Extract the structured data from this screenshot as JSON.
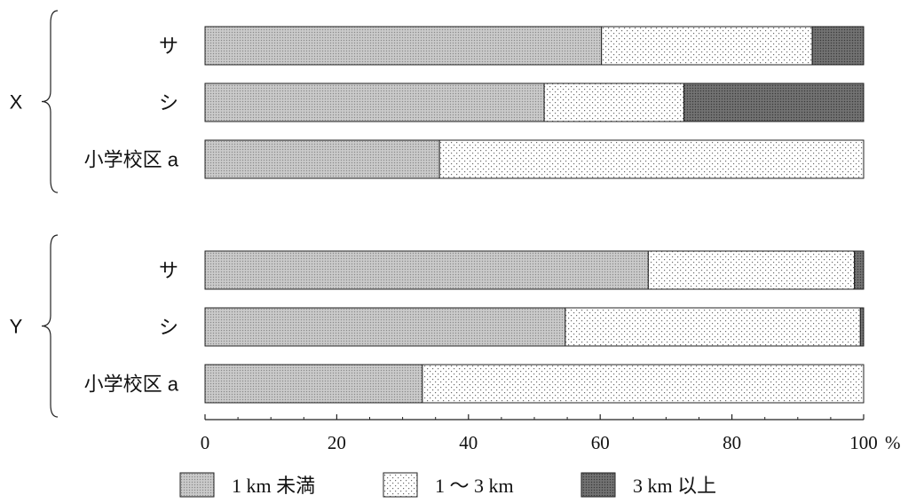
{
  "chart_data": {
    "type": "bar",
    "orientation": "horizontal",
    "stacked": true,
    "percent": true,
    "groups": [
      {
        "name": "X",
        "rows": [
          {
            "label": "サ",
            "values": [
              60.2,
              32.0,
              7.8
            ]
          },
          {
            "label": "シ",
            "values": [
              51.5,
              21.2,
              27.3
            ]
          },
          {
            "label": "小学校区 a",
            "values": [
              35.6,
              64.4,
              0
            ]
          }
        ]
      },
      {
        "name": "Y",
        "rows": [
          {
            "label": "サ",
            "values": [
              67.3,
              31.3,
              1.4
            ]
          },
          {
            "label": "シ",
            "values": [
              54.7,
              44.8,
              0.5
            ]
          },
          {
            "label": "小学校区 a",
            "values": [
              33.0,
              67.0,
              0
            ]
          }
        ]
      }
    ],
    "series": [
      {
        "name": "1 km 未満",
        "pattern": "light-gray"
      },
      {
        "name": "1 〜 3 km",
        "pattern": "dotted"
      },
      {
        "name": "3 km 以上",
        "pattern": "dark-gray"
      }
    ],
    "xlim": [
      0,
      100
    ],
    "xticks": [
      0,
      20,
      40,
      60,
      80,
      100
    ],
    "xtick_labels": [
      "0",
      "20",
      "40",
      "60",
      "80",
      "100"
    ],
    "xunit": "%",
    "legend_position": "bottom",
    "grid": false
  }
}
